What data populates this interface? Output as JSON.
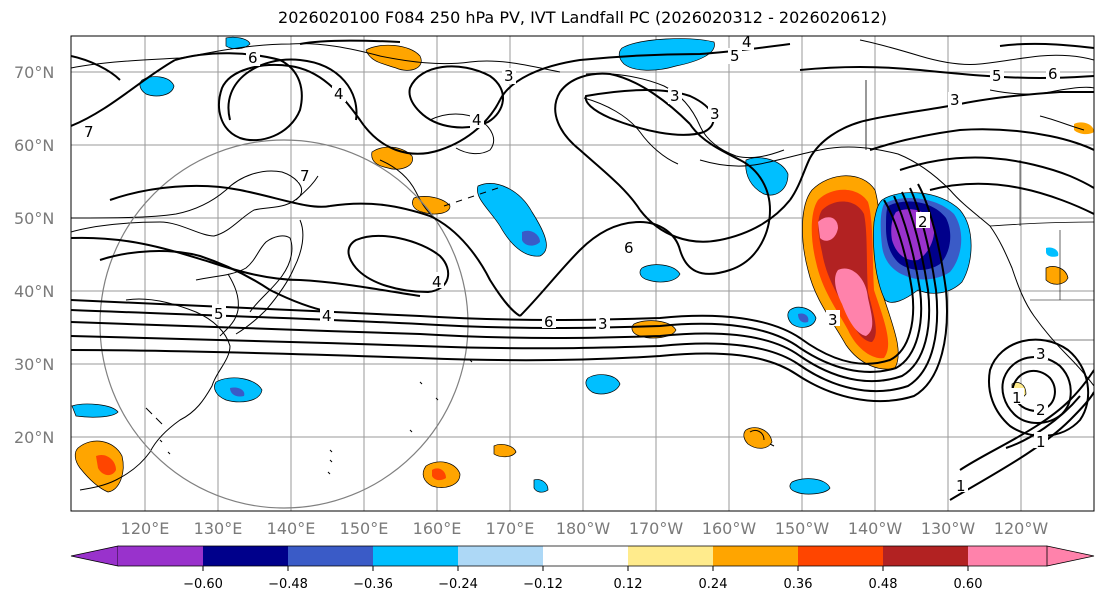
{
  "title": "2026020100 F084 250 hPa PV, IVT Landfall PC (2026020312 - 2026020612)",
  "map": {
    "lat_labels": [
      "70°N",
      "60°N",
      "50°N",
      "40°N",
      "30°N",
      "20°N"
    ],
    "lon_labels": [
      "120°E",
      "130°E",
      "140°E",
      "150°E",
      "160°E",
      "170°E",
      "180°W",
      "170°W",
      "160°W",
      "150°W",
      "140°W",
      "130°W",
      "120°W"
    ],
    "contour_labels": [
      "4",
      "5",
      "3",
      "5",
      "6",
      "3",
      "6",
      "4",
      "3",
      "4",
      "7",
      "6",
      "3",
      "7",
      "4",
      "5",
      "4",
      "6",
      "3",
      "3",
      "1",
      "2",
      "1",
      "3",
      "2",
      "1"
    ],
    "colors": {
      "deep_purple": "#9932cc",
      "navy": "#00008b",
      "royal_blue": "#3a5bc7",
      "deep_sky": "#00bfff",
      "light_sky": "#add8f6",
      "white": "#ffffff",
      "khaki": "#ffeb8c",
      "orange": "#ffa500",
      "orange_red": "#ff4500",
      "firebrick": "#b22222",
      "pink": "#ff82ab"
    }
  },
  "colorbar": {
    "ticks": [
      "−0.60",
      "−0.48",
      "−0.36",
      "−0.24",
      "−0.12",
      "0.12",
      "0.24",
      "0.36",
      "0.48",
      "0.60"
    ],
    "colors": [
      "#9932cc",
      "#00008b",
      "#3a5bc7",
      "#00bfff",
      "#add8f6",
      "#ffffff",
      "#ffeb8c",
      "#ffa500",
      "#ff4500",
      "#b22222",
      "#ff82ab"
    ]
  }
}
